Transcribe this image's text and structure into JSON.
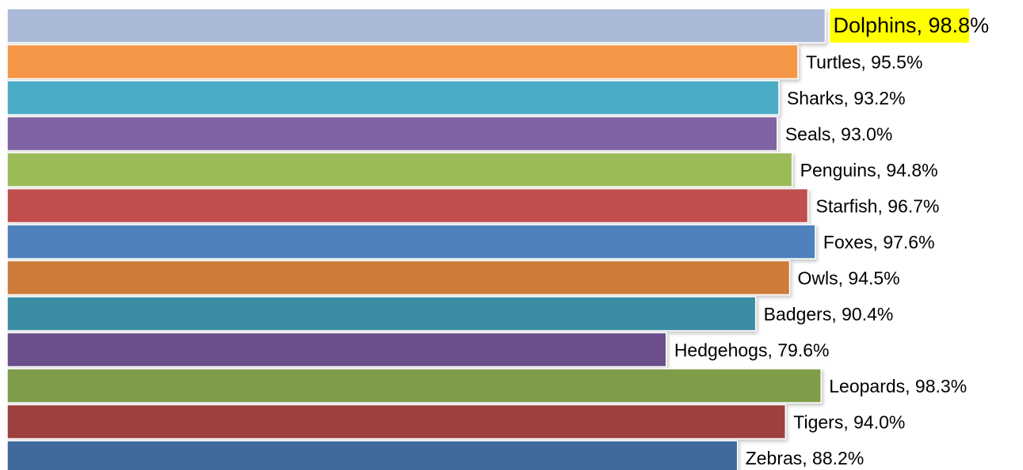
{
  "chart_data": {
    "type": "bar",
    "orientation": "horizontal",
    "title": "",
    "xlabel": "",
    "ylabel": "",
    "xlim": [
      0,
      100
    ],
    "grid": false,
    "legend": "none",
    "highlight": {
      "category": "Dolphins",
      "color": "#ffff00"
    },
    "bars": [
      {
        "label": "Dolphins, 98.8%",
        "category": "Dolphins",
        "value": 98.8,
        "color": "#aab9d8"
      },
      {
        "label": "Turtles, 95.5%",
        "category": "Turtles",
        "value": 95.5,
        "color": "#f69646"
      },
      {
        "label": "Sharks, 93.2%",
        "category": "Sharks",
        "value": 93.2,
        "color": "#4bacc6"
      },
      {
        "label": "Seals, 93.0%",
        "category": "Seals",
        "value": 93.0,
        "color": "#8064a2"
      },
      {
        "label": "Penguins, 94.8%",
        "category": "Penguins",
        "value": 94.8,
        "color": "#9bbb59"
      },
      {
        "label": "Starfish, 96.7%",
        "category": "Starfish",
        "value": 96.7,
        "color": "#c0504d"
      },
      {
        "label": "Foxes, 97.6%",
        "category": "Foxes",
        "value": 97.6,
        "color": "#4f81bd"
      },
      {
        "label": "Owls, 94.5%",
        "category": "Owls",
        "value": 94.5,
        "color": "#cc7b38"
      },
      {
        "label": "Badgers, 90.4%",
        "category": "Badgers",
        "value": 90.4,
        "color": "#3a8da4"
      },
      {
        "label": "Hedgehogs, 79.6%",
        "category": "Hedgehogs",
        "value": 79.6,
        "color": "#6a4f8a"
      },
      {
        "label": "Leopards, 98.3%",
        "category": "Leopards",
        "value": 98.3,
        "color": "#7f9c4a"
      },
      {
        "label": "Tigers, 94.0%",
        "category": "Tigers",
        "value": 94.0,
        "color": "#9e3f3c"
      },
      {
        "label": "Zebras, 88.2%",
        "category": "Zebras",
        "value": 88.2,
        "color": "#416a9c"
      }
    ]
  }
}
